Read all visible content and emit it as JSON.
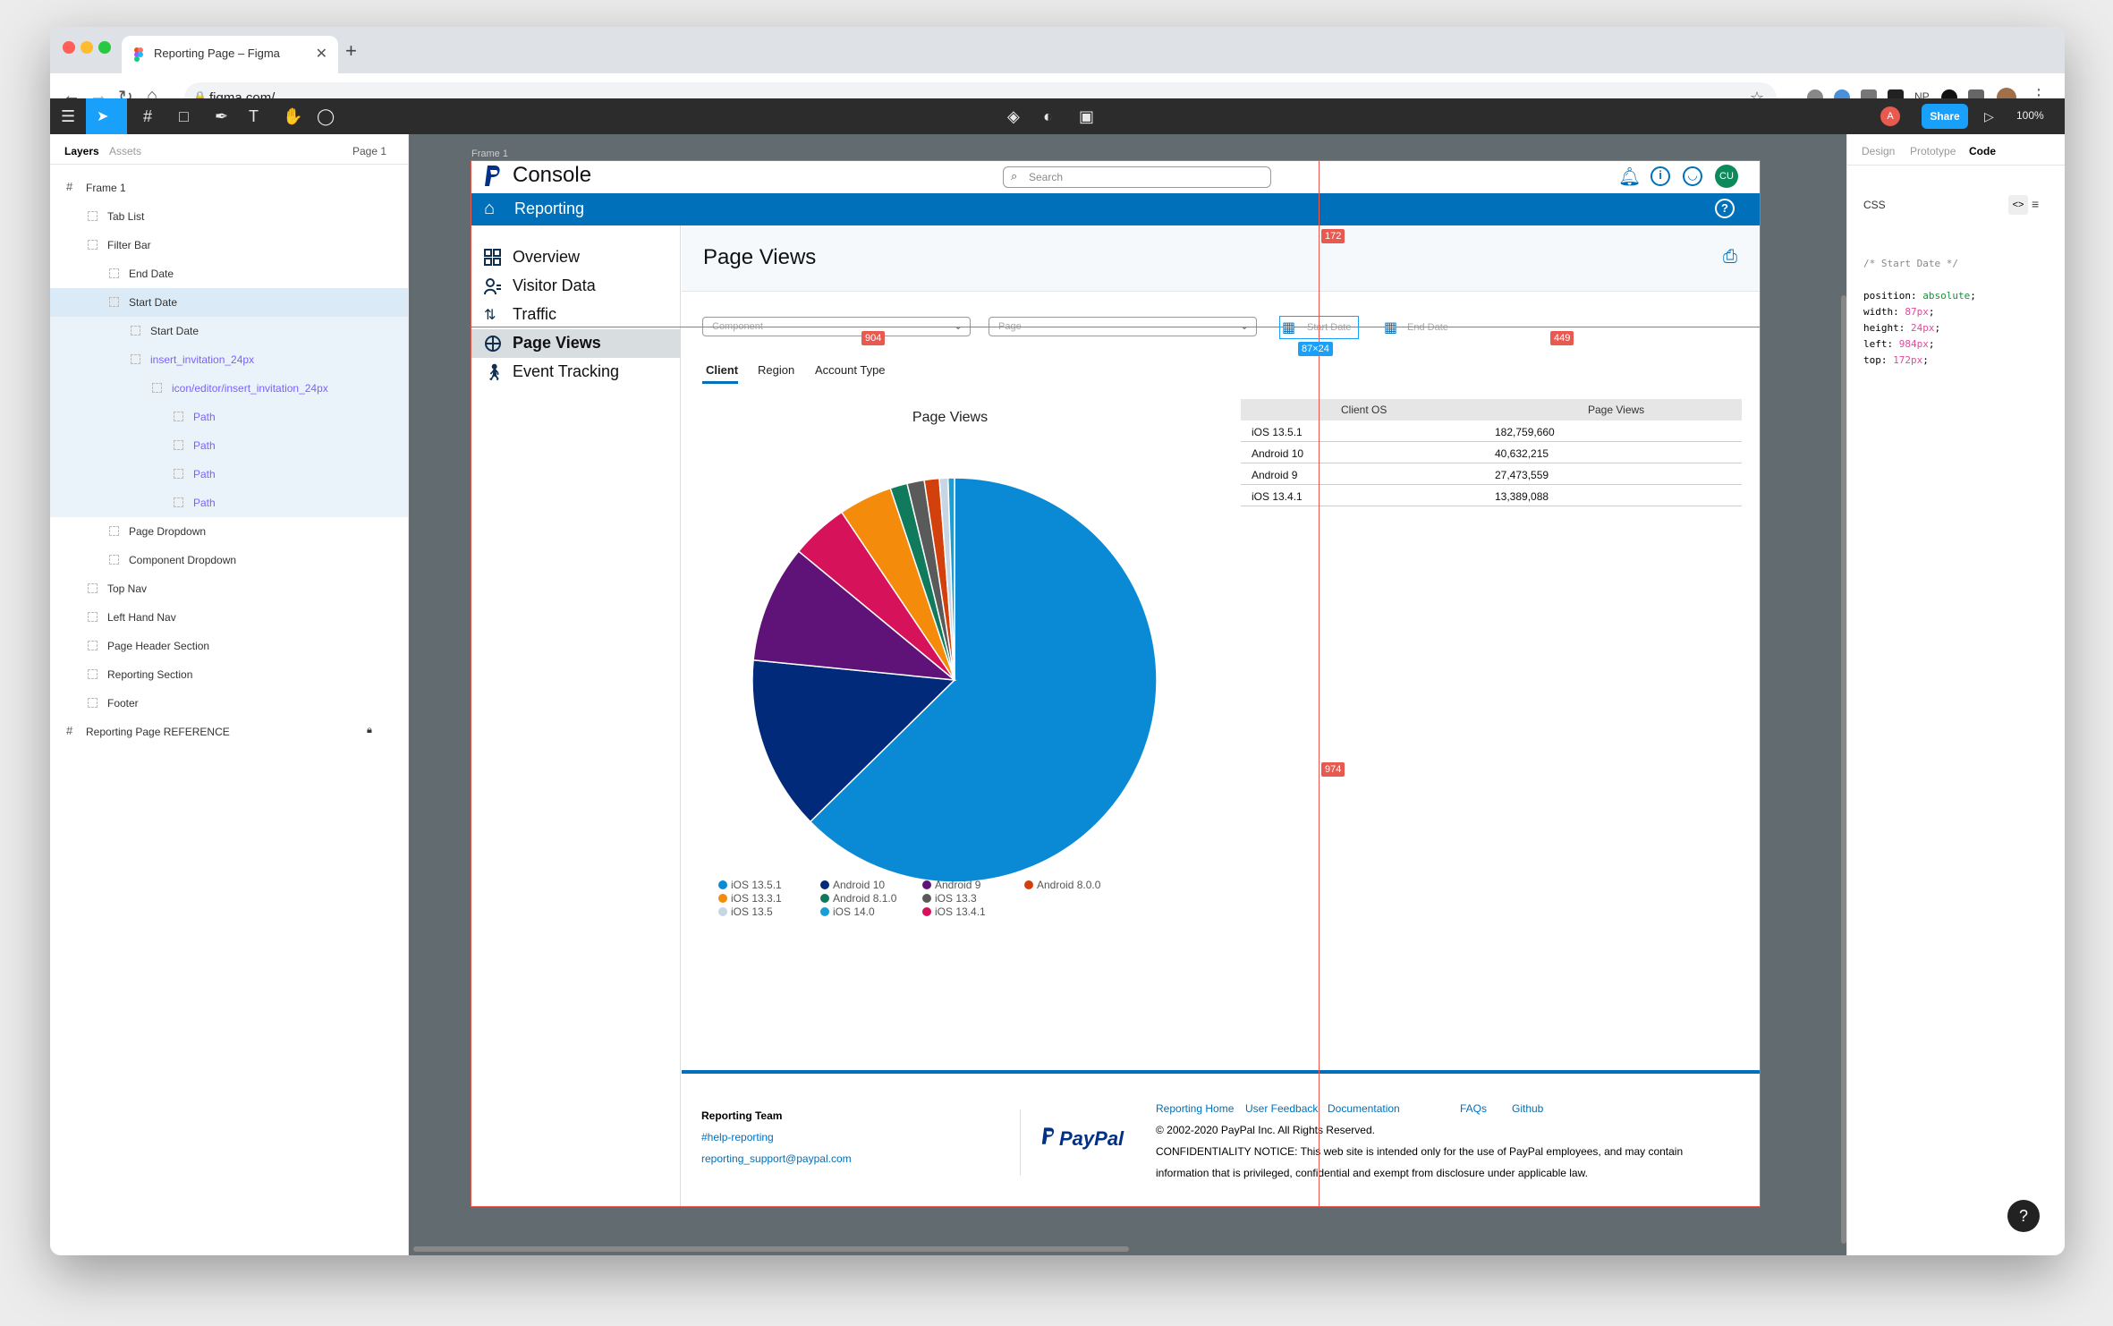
{
  "browser": {
    "tab_title": "Reporting Page – Figma",
    "tab_close": "✕",
    "new_tab": "+",
    "url": "figma.com/"
  },
  "figma_toolbar": {
    "share_label": "Share",
    "avatar_initial": "A",
    "zoom": "100%"
  },
  "layers_panel": {
    "tabs": [
      "Layers",
      "Assets"
    ],
    "page_selector": "Page 1",
    "items": [
      {
        "label": "Frame 1",
        "indent": 0,
        "state": "normal"
      },
      {
        "label": "Tab List",
        "indent": 1,
        "state": "normal"
      },
      {
        "label": "Filter Bar",
        "indent": 1,
        "state": "normal"
      },
      {
        "label": "End Date",
        "indent": 2,
        "state": "normal"
      },
      {
        "label": "Start Date",
        "indent": 2,
        "state": "selected"
      },
      {
        "label": "Start Date",
        "indent": 3,
        "state": "child"
      },
      {
        "label": "insert_invitation_24px",
        "indent": 3,
        "state": "child-purple"
      },
      {
        "label": "icon/editor/insert_invitation_24px",
        "indent": 4,
        "state": "child-purple"
      },
      {
        "label": "Path",
        "indent": 5,
        "state": "child-purple"
      },
      {
        "label": "Path",
        "indent": 5,
        "state": "child-purple"
      },
      {
        "label": "Path",
        "indent": 5,
        "state": "child-purple"
      },
      {
        "label": "Path",
        "indent": 5,
        "state": "child-purple"
      },
      {
        "label": "Page Dropdown",
        "indent": 2,
        "state": "normal"
      },
      {
        "label": "Component Dropdown",
        "indent": 2,
        "state": "normal"
      },
      {
        "label": "Top Nav",
        "indent": 1,
        "state": "normal"
      },
      {
        "label": "Left Hand Nav",
        "indent": 1,
        "state": "normal"
      },
      {
        "label": "Page Header Section",
        "indent": 1,
        "state": "normal"
      },
      {
        "label": "Reporting Section",
        "indent": 1,
        "state": "normal"
      },
      {
        "label": "Footer",
        "indent": 1,
        "state": "normal"
      },
      {
        "label": "Reporting Page REFERENCE",
        "indent": 0,
        "state": "normal"
      }
    ]
  },
  "right_panel": {
    "tabs": [
      "Design",
      "Prototype",
      "Code"
    ],
    "lang": "CSS",
    "code_comment": "/* Start Date */",
    "code_lines": [
      {
        "prop": "position",
        "val": "absolute"
      },
      {
        "prop": "width",
        "val": "87px"
      },
      {
        "prop": "height",
        "val": "24px"
      },
      {
        "prop": "left",
        "val": "984px"
      },
      {
        "prop": "top",
        "val": "172px"
      }
    ]
  },
  "canvas": {
    "frame_label": "Frame 1",
    "measure_tags": {
      "top": "172",
      "left": "904",
      "right": "449",
      "bottom": "974",
      "size": "87×24"
    }
  },
  "console": {
    "brand": "Console",
    "search_placeholder": "Search",
    "user_initials": "CU",
    "section_title": "Reporting",
    "nav": [
      "Overview",
      "Visitor Data",
      "Traffic",
      "Page Views",
      "Event Tracking"
    ],
    "active_nav": "Page Views",
    "page_title": "Page Views",
    "filters": {
      "component_placeholder": "Component",
      "page_placeholder": "Page",
      "start_date": "Start Date",
      "end_date": "End Date"
    },
    "tabs": [
      "Client",
      "Region",
      "Account Type"
    ],
    "active_tab": "Client",
    "table": {
      "headers": [
        "Client OS",
        "Page Views"
      ],
      "rows": [
        [
          "iOS 13.5.1",
          "182,759,660"
        ],
        [
          "Android 10",
          "40,632,215"
        ],
        [
          "Android 9",
          "27,473,559"
        ],
        [
          "iOS 13.4.1",
          "13,389,088"
        ]
      ]
    },
    "footer": {
      "team_title": "Reporting Team",
      "slack": "#help-reporting",
      "email": "reporting_support@paypal.com",
      "paypal_logo": "PayPal",
      "links": [
        "Reporting Home",
        "User Feedback",
        "Documentation",
        "FAQs",
        "Github"
      ],
      "copyright": "© 2002-2020 PayPal Inc. All Rights Reserved.",
      "notice_1": "CONFIDENTIALITY NOTICE: This web site is intended only for the use of PayPal employees, and may contain",
      "notice_2": "information that is privileged, confidential and exempt from disclosure under applicable law."
    }
  },
  "colors": {
    "paypal_blue": "#0070ba",
    "figma_blue": "#18a0fb",
    "measure_red": "#e85a4f"
  },
  "chart_data": {
    "type": "pie",
    "title": "Page Views",
    "slices": [
      {
        "label": "iOS 13.5.1",
        "value": 182759660,
        "color": "#0a8ad4"
      },
      {
        "label": "Android 10",
        "value": 40632215,
        "color": "#012a7a"
      },
      {
        "label": "Android 9",
        "value": 27473559,
        "color": "#5f1277"
      },
      {
        "label": "iOS 13.4.1",
        "value": 13389088,
        "color": "#d6125a"
      },
      {
        "label": "iOS 13.3.1",
        "value": 12500000,
        "color": "#f58b0a"
      },
      {
        "label": "Android 8.1.0",
        "value": 4000000,
        "color": "#0f7a5c"
      },
      {
        "label": "iOS 13.3",
        "value": 4000000,
        "color": "#5a5a5a"
      },
      {
        "label": "Android 8.0.0",
        "value": 3500000,
        "color": "#d2400b"
      },
      {
        "label": "iOS 13.5",
        "value": 2000000,
        "color": "#c6d6e4"
      },
      {
        "label": "iOS 14.0",
        "value": 1500000,
        "color": "#1a9ed6"
      }
    ],
    "legend_order": [
      "iOS 13.5.1",
      "iOS 13.3.1",
      "iOS 13.5",
      "Android 10",
      "Android 8.1.0",
      "iOS 14.0",
      "Android 9",
      "iOS 13.3",
      "iOS 13.4.1",
      "Android 8.0.0"
    ],
    "legend_position": "bottom"
  }
}
